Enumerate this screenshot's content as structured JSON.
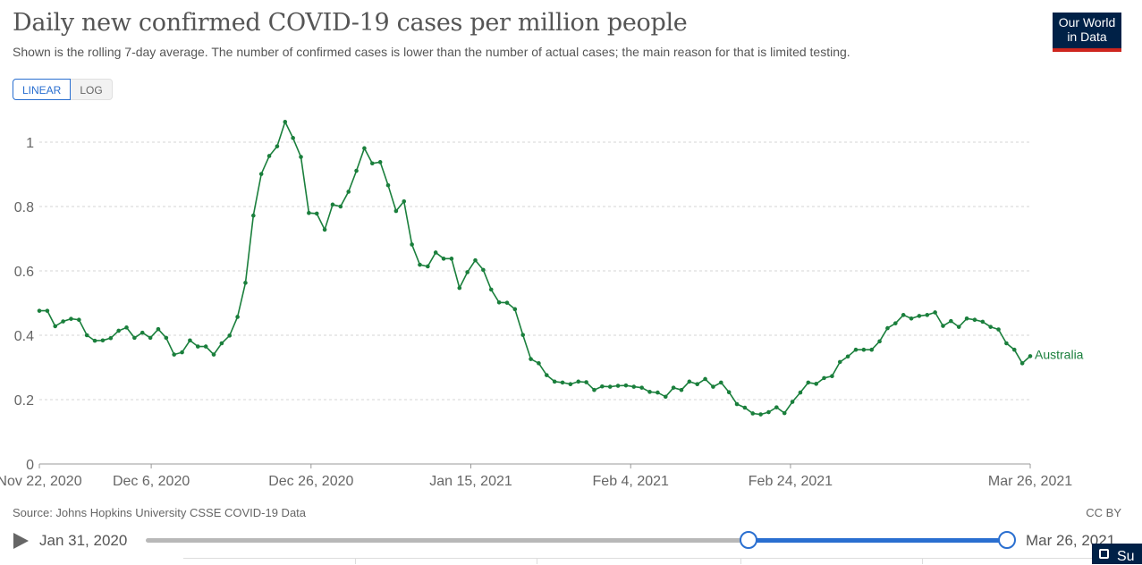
{
  "header": {
    "title": "Daily new confirmed COVID-19 cases per million people",
    "subtitle": "Shown is the rolling 7-day average. The number of confirmed cases is lower than the number of actual cases; the main reason for that is limited testing.",
    "logo_line1": "Our World",
    "logo_line2": "in Data"
  },
  "controls": {
    "linear_label": "LINEAR",
    "log_label": "LOG"
  },
  "footer": {
    "source": "Source: Johns Hopkins University CSSE COVID-19 Data",
    "license": "CC BY"
  },
  "timeline": {
    "start_label": "Jan 31, 2020",
    "end_label": "Mar 26, 2021",
    "selection_start_fraction": 0.7,
    "selection_end_fraction": 1.0
  },
  "bottom_bar": {
    "button_label": "Su"
  },
  "colors": {
    "series": "#1a7f3c",
    "accent": "#2a6fd0",
    "brand": "#002147",
    "brand_stripe": "#ce261e"
  },
  "chart_data": {
    "type": "line",
    "title": "Daily new confirmed COVID-19 cases per million people",
    "xlabel": "",
    "ylabel": "",
    "x_ticks": [
      "Nov 22, 2020",
      "Dec 6, 2020",
      "Dec 26, 2020",
      "Jan 15, 2021",
      "Feb 4, 2021",
      "Feb 24, 2021",
      "Mar 26, 2021"
    ],
    "x_start": "Nov 22, 2020",
    "x_end": "Mar 26, 2021",
    "y_ticks": [
      "0",
      "0.2",
      "0.4",
      "0.6",
      "0.8",
      "1"
    ],
    "ylim": [
      0,
      1.1
    ],
    "grid": true,
    "series": [
      {
        "name": "Australia",
        "color": "#1a7f3c",
        "values": [
          0.476,
          0.476,
          0.428,
          0.443,
          0.451,
          0.448,
          0.4,
          0.383,
          0.384,
          0.391,
          0.414,
          0.424,
          0.392,
          0.408,
          0.392,
          0.419,
          0.392,
          0.34,
          0.347,
          0.384,
          0.365,
          0.365,
          0.34,
          0.375,
          0.399,
          0.457,
          0.563,
          0.772,
          0.901,
          0.957,
          0.987,
          1.063,
          1.013,
          0.954,
          0.78,
          0.778,
          0.728,
          0.806,
          0.8,
          0.846,
          0.911,
          0.981,
          0.934,
          0.938,
          0.866,
          0.786,
          0.816,
          0.682,
          0.619,
          0.614,
          0.657,
          0.638,
          0.638,
          0.547,
          0.596,
          0.633,
          0.603,
          0.542,
          0.502,
          0.501,
          0.481,
          0.401,
          0.326,
          0.313,
          0.276,
          0.256,
          0.253,
          0.248,
          0.256,
          0.254,
          0.23,
          0.241,
          0.24,
          0.243,
          0.244,
          0.24,
          0.237,
          0.224,
          0.222,
          0.209,
          0.237,
          0.23,
          0.256,
          0.248,
          0.264,
          0.24,
          0.253,
          0.223,
          0.186,
          0.175,
          0.157,
          0.154,
          0.161,
          0.176,
          0.158,
          0.193,
          0.222,
          0.253,
          0.249,
          0.267,
          0.273,
          0.317,
          0.334,
          0.355,
          0.355,
          0.355,
          0.381,
          0.422,
          0.437,
          0.463,
          0.452,
          0.46,
          0.463,
          0.471,
          0.429,
          0.444,
          0.426,
          0.452,
          0.448,
          0.442,
          0.426,
          0.418,
          0.375,
          0.355,
          0.313,
          0.335
        ]
      }
    ]
  }
}
